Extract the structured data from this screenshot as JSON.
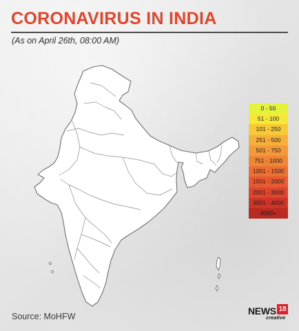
{
  "header": {
    "title": "CORONAVIRUS IN INDIA",
    "subtitle": "(As on April 26th, 08:00 AM)"
  },
  "map": {
    "region": "India",
    "fill_color": "#ffffff",
    "border_color": "#6f6f6f"
  },
  "legend": {
    "items": [
      {
        "label": "0 - 50",
        "color": "#e4f23a"
      },
      {
        "label": "51 - 100",
        "color": "#f5e83a"
      },
      {
        "label": "101 - 250",
        "color": "#f6c935"
      },
      {
        "label": "251 - 500",
        "color": "#f6b03a"
      },
      {
        "label": "501 - 750",
        "color": "#f29a3a"
      },
      {
        "label": "751 - 1000",
        "color": "#ee8636"
      },
      {
        "label": "1001 - 1500",
        "color": "#ea7133"
      },
      {
        "label": "1501 - 2000",
        "color": "#e55a30"
      },
      {
        "label": "2001 - 3000",
        "color": "#de452c"
      },
      {
        "label": "3001 - 4000",
        "color": "#cf3527"
      },
      {
        "label": "4000+",
        "color": "#b82a22"
      }
    ]
  },
  "footer": {
    "source": "Source: MoHFW",
    "logo": {
      "main": "NEWS",
      "number": "18",
      "tagline": "creative"
    }
  }
}
